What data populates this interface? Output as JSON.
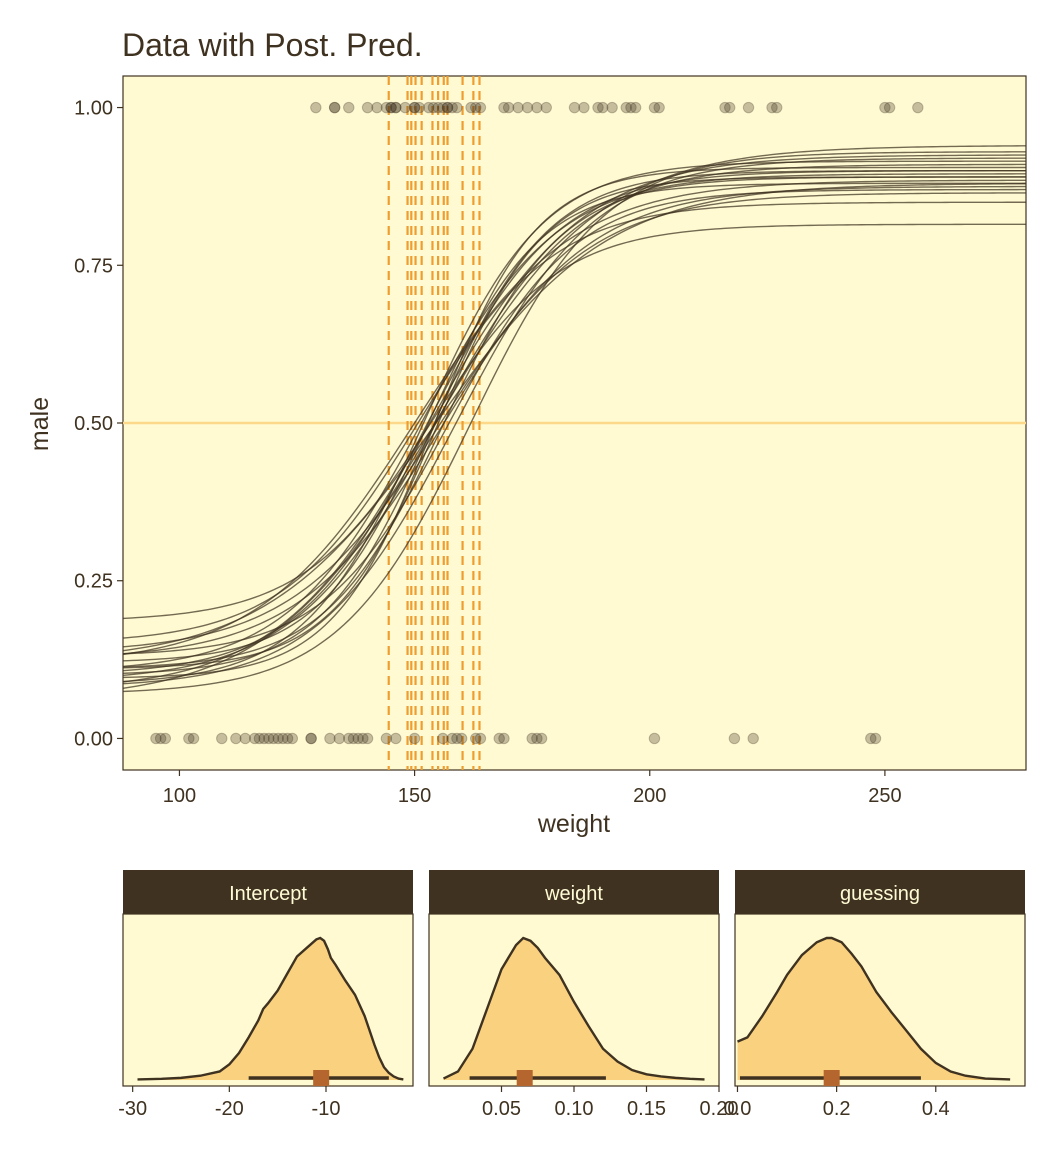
{
  "colors": {
    "background": "#ffffff",
    "panel": "#fffad2",
    "text": "#3f3220",
    "strip": "#3f3220",
    "strip_text": "#fffbd5",
    "points": "#3f3220",
    "curves": "#3f3220",
    "vlines": "#ee9e30",
    "hline": "#fcd88a",
    "density_fill": "#fad27f",
    "interval": "#3f3220",
    "point_estimate": "#b5662e"
  },
  "chart_data": [
    {
      "type": "scatter",
      "title": "Data with Post. Pred.",
      "xlabel": "weight",
      "ylabel": "male",
      "xlim": [
        88,
        280
      ],
      "ylim": [
        -0.05,
        1.05
      ],
      "x_ticks": [
        100,
        150,
        200,
        250
      ],
      "y_ticks": [
        0.0,
        0.25,
        0.5,
        0.75,
        1.0
      ],
      "y_tick_labels": [
        "0.00",
        "0.25",
        "0.50",
        "0.75",
        "1.00"
      ],
      "grid": false,
      "points_male_1": [
        129,
        133,
        133,
        136,
        140,
        142,
        144,
        145,
        145,
        146,
        146,
        148,
        150,
        150,
        151,
        153,
        154,
        155,
        156,
        157,
        157,
        158,
        159,
        162,
        163,
        164,
        169,
        170,
        172,
        174,
        176,
        178,
        184,
        186,
        189,
        190,
        192,
        195,
        196,
        197,
        201,
        202,
        216,
        217,
        221,
        226,
        227,
        250,
        251,
        257
      ],
      "points_male_0": [
        95,
        96,
        97,
        102,
        103,
        109,
        112,
        114,
        116,
        117,
        118,
        119,
        120,
        121,
        122,
        123,
        124,
        128,
        128,
        132,
        134,
        136,
        137,
        138,
        139,
        140,
        144,
        146,
        150,
        156,
        158,
        159,
        160,
        163,
        164,
        168,
        169,
        175,
        176,
        177,
        201,
        218,
        222,
        247,
        248
      ],
      "hline_y": 0.5,
      "vlines_x": [
        144.5,
        148.5,
        149.3,
        150.2,
        151.5,
        153.8,
        155.0,
        156.2,
        157.0,
        160.2,
        162.5,
        163.8
      ],
      "posterior_curves": [
        {
          "intercept": -11.0,
          "weight": 0.072,
          "guessing": 0.2
        },
        {
          "intercept": -10.2,
          "weight": 0.066,
          "guessing": 0.18
        },
        {
          "intercept": -12.5,
          "weight": 0.08,
          "guessing": 0.22
        },
        {
          "intercept": -9.5,
          "weight": 0.062,
          "guessing": 0.15
        },
        {
          "intercept": -13.0,
          "weight": 0.085,
          "guessing": 0.24
        },
        {
          "intercept": -8.8,
          "weight": 0.057,
          "guessing": 0.12
        },
        {
          "intercept": -11.8,
          "weight": 0.075,
          "guessing": 0.26
        },
        {
          "intercept": -10.6,
          "weight": 0.07,
          "guessing": 0.21
        },
        {
          "intercept": -14.2,
          "weight": 0.092,
          "guessing": 0.19
        },
        {
          "intercept": -9.0,
          "weight": 0.06,
          "guessing": 0.23
        },
        {
          "intercept": -12.0,
          "weight": 0.079,
          "guessing": 0.17
        },
        {
          "intercept": -10.0,
          "weight": 0.064,
          "guessing": 0.25
        },
        {
          "intercept": -11.5,
          "weight": 0.071,
          "guessing": 0.14
        },
        {
          "intercept": -13.8,
          "weight": 0.089,
          "guessing": 0.22
        },
        {
          "intercept": -9.8,
          "weight": 0.063,
          "guessing": 0.27
        },
        {
          "intercept": -10.8,
          "weight": 0.068,
          "guessing": 0.16
        },
        {
          "intercept": -12.8,
          "weight": 0.083,
          "guessing": 0.2
        },
        {
          "intercept": -8.5,
          "weight": 0.055,
          "guessing": 0.24
        },
        {
          "intercept": -11.2,
          "weight": 0.073,
          "guessing": 0.37
        },
        {
          "intercept": -10.4,
          "weight": 0.069,
          "guessing": 0.3
        }
      ]
    },
    {
      "type": "area",
      "title": "Intercept",
      "xlim": [
        -31,
        -1
      ],
      "x_ticks": [
        -30,
        -20,
        -10
      ],
      "density": {
        "x": [
          -29.5,
          -27,
          -25,
          -23,
          -21,
          -20,
          -19,
          -18,
          -17,
          -16.5,
          -16,
          -15,
          -14,
          -13,
          -12,
          -11.5,
          -11,
          -10.6,
          -10.2,
          -9.8,
          -9.5,
          -9,
          -8,
          -7,
          -6,
          -5.5,
          -5,
          -4.5,
          -4,
          -3.5,
          -3,
          -2.5,
          -2
        ],
        "y": [
          0.004,
          0.008,
          0.015,
          0.03,
          0.06,
          0.11,
          0.19,
          0.3,
          0.42,
          0.5,
          0.54,
          0.63,
          0.75,
          0.87,
          0.93,
          0.96,
          0.99,
          1.0,
          0.98,
          0.92,
          0.86,
          0.81,
          0.7,
          0.6,
          0.45,
          0.35,
          0.25,
          0.16,
          0.09,
          0.05,
          0.025,
          0.01,
          0.004
        ]
      },
      "point_estimate": -10.5,
      "interval": [
        -18,
        -3.5
      ]
    },
    {
      "type": "area",
      "title": "weight",
      "xlim": [
        0.0,
        0.2
      ],
      "x_ticks": [
        0.05,
        0.1,
        0.15,
        0.2
      ],
      "x_tick_labels": [
        "0.05",
        "0.10",
        "0.15",
        "0.20"
      ],
      "density": {
        "x": [
          0.01,
          0.02,
          0.03,
          0.04,
          0.05,
          0.06,
          0.065,
          0.07,
          0.075,
          0.08,
          0.09,
          0.1,
          0.11,
          0.12,
          0.13,
          0.14,
          0.15,
          0.16,
          0.17,
          0.18,
          0.19
        ],
        "y": [
          0.01,
          0.06,
          0.22,
          0.5,
          0.78,
          0.95,
          1.0,
          0.98,
          0.93,
          0.86,
          0.74,
          0.55,
          0.38,
          0.22,
          0.13,
          0.07,
          0.04,
          0.025,
          0.015,
          0.008,
          0.004
        ]
      },
      "point_estimate": 0.066,
      "interval": [
        0.028,
        0.122
      ]
    },
    {
      "type": "area",
      "title": "guessing",
      "xlim": [
        -0.005,
        0.58
      ],
      "x_ticks": [
        0.0,
        0.2,
        0.4
      ],
      "x_tick_labels": [
        "0.0",
        "0.2",
        "0.4"
      ],
      "density": {
        "x": [
          0.0,
          0.02,
          0.05,
          0.08,
          0.1,
          0.13,
          0.16,
          0.18,
          0.19,
          0.21,
          0.23,
          0.25,
          0.28,
          0.31,
          0.34,
          0.37,
          0.4,
          0.43,
          0.46,
          0.5,
          0.55
        ],
        "y": [
          0.27,
          0.3,
          0.45,
          0.62,
          0.74,
          0.88,
          0.97,
          1.0,
          1.0,
          0.97,
          0.89,
          0.8,
          0.62,
          0.48,
          0.35,
          0.22,
          0.12,
          0.06,
          0.03,
          0.01,
          0.004
        ]
      },
      "point_estimate": 0.19,
      "interval": [
        0.005,
        0.37
      ]
    }
  ]
}
